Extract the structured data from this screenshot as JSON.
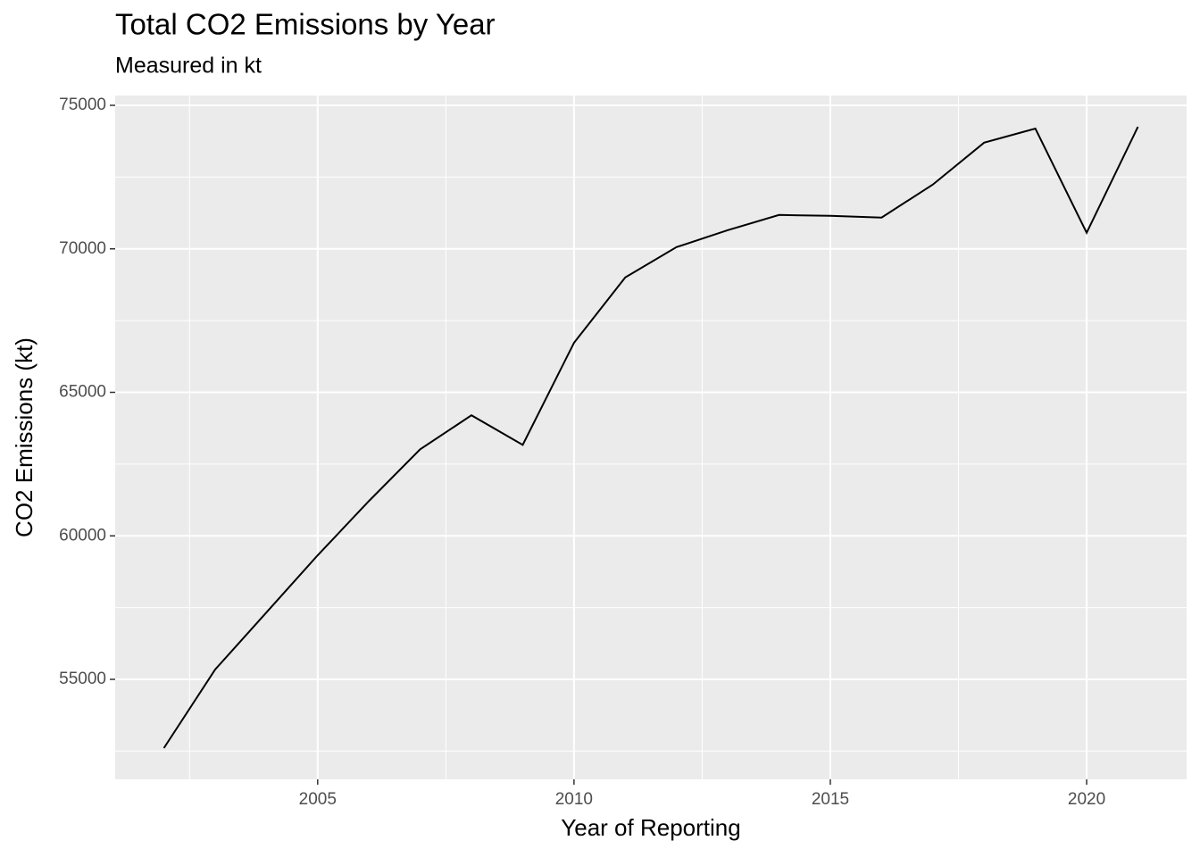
{
  "chart_data": {
    "type": "line",
    "title": "Total CO2 Emissions by Year",
    "subtitle": "Measured in kt",
    "x_label": "Year of Reporting",
    "y_label": "CO2 Emissions (kt)",
    "x": [
      2002,
      2003,
      2004,
      2005,
      2006,
      2007,
      2008,
      2009,
      2010,
      2011,
      2012,
      2013,
      2014,
      2015,
      2016,
      2017,
      2018,
      2019,
      2020,
      2021
    ],
    "series": [
      {
        "color": "#000000",
        "values": [
          52605,
          55342,
          57330,
          59323,
          61213,
          63017,
          64200,
          63170,
          66726,
          69005,
          70060,
          70650,
          71180,
          71150,
          71090,
          72240,
          73700,
          74190,
          70560,
          74250
        ]
      }
    ],
    "xlim": [
      2001.05,
      2021.95
    ],
    "xticks": [
      2005,
      2010,
      2015,
      2020
    ],
    "ylim": [
      51516,
      75342
    ],
    "yticks": [
      55000,
      60000,
      65000,
      70000,
      75000
    ],
    "grid": true,
    "minor_grid": true,
    "panel_color": "#ebebeb"
  }
}
